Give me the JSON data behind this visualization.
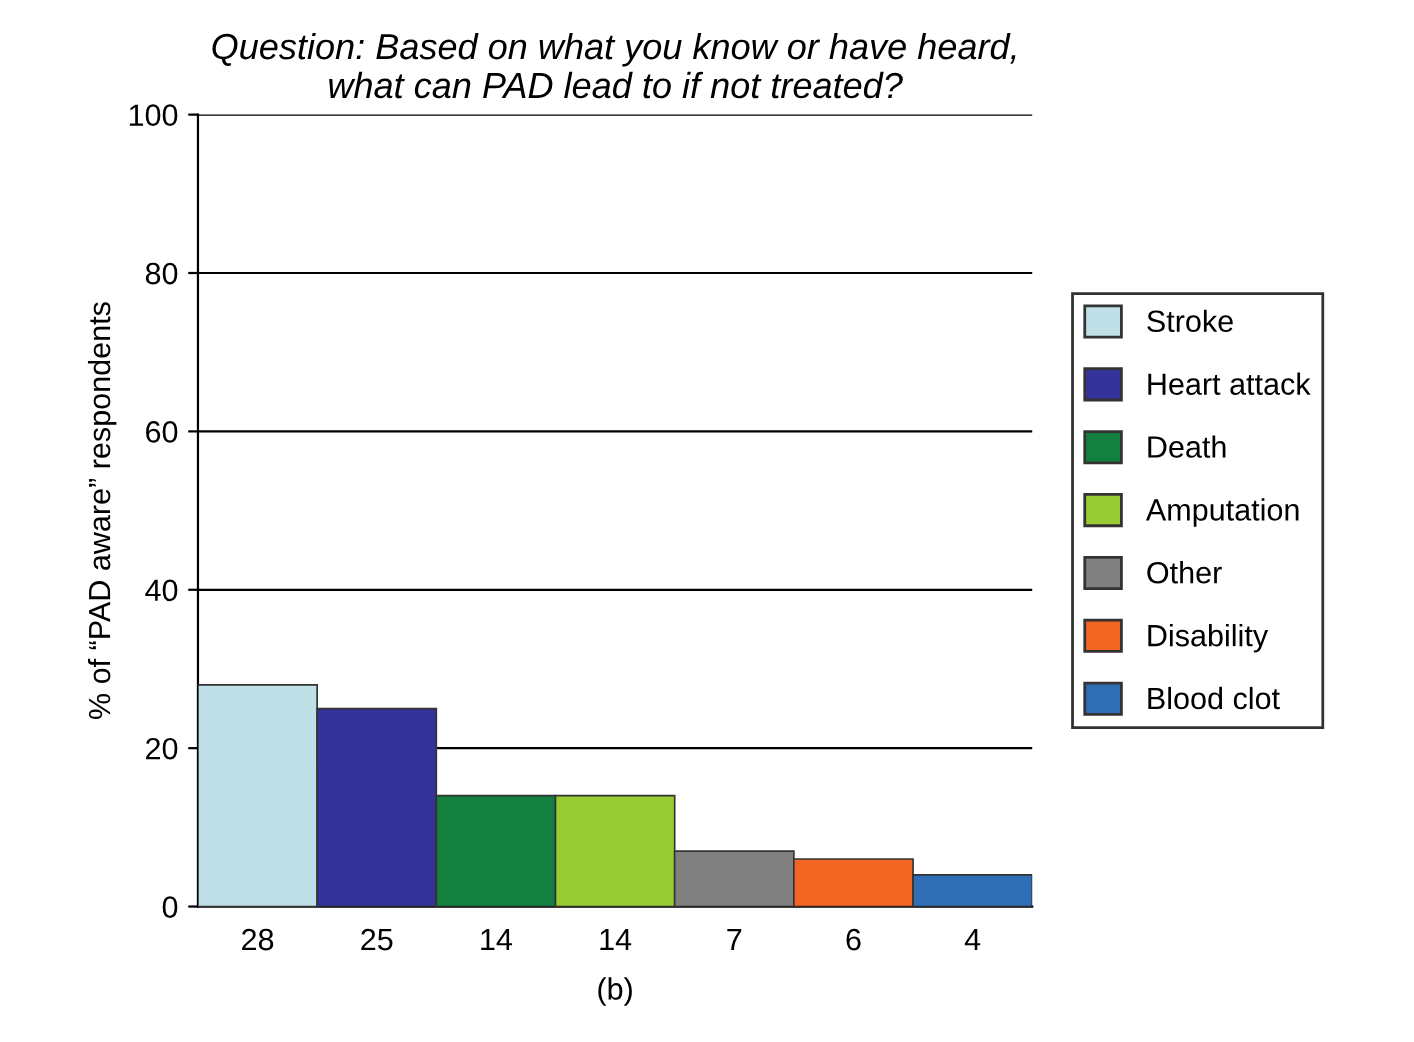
{
  "chart_data": {
    "type": "bar",
    "title": "Question: Based on what you know or have heard,\nwhat can PAD lead to if not treated?",
    "xlabel": "(b)",
    "ylabel": "% of “PAD aware” respondents",
    "categories": [
      null,
      null,
      null,
      null,
      null,
      null,
      null
    ],
    "series": [
      {
        "name": "Stroke",
        "color": "#bfe0e6",
        "values": [
          28,
          null,
          null,
          null,
          null,
          null,
          null
        ]
      },
      {
        "name": "Heart attack",
        "color": "#333399",
        "values": [
          null,
          25,
          null,
          null,
          null,
          null,
          null
        ]
      },
      {
        "name": "Death",
        "color": "#138040",
        "values": [
          null,
          null,
          14,
          null,
          null,
          null,
          null
        ]
      },
      {
        "name": "Amputation",
        "color": "#99cc33",
        "values": [
          null,
          null,
          null,
          14,
          null,
          null,
          null
        ]
      },
      {
        "name": "Other",
        "color": "#808080",
        "values": [
          null,
          null,
          null,
          null,
          7,
          null,
          null
        ]
      },
      {
        "name": "Disability",
        "color": "#f26522",
        "values": [
          null,
          null,
          null,
          null,
          null,
          6,
          null
        ]
      },
      {
        "name": "Blood clot",
        "color": "#2f6db5",
        "values": [
          null,
          null,
          null,
          null,
          null,
          null,
          4
        ]
      }
    ],
    "ylim": [
      0,
      100
    ],
    "yticks": [
      0,
      20,
      40,
      60,
      80,
      100
    ],
    "grid": "y",
    "legend": "right",
    "data_labels": true
  }
}
